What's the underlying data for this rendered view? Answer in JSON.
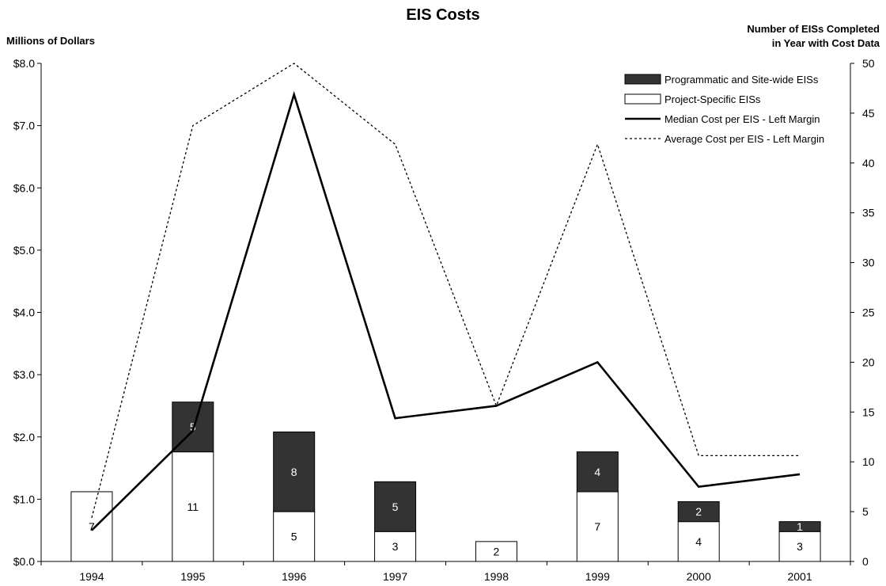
{
  "chart_data": {
    "type": "bar",
    "title": "EIS Costs",
    "left_axis": {
      "label": "Millions of Dollars",
      "ylim": [
        0,
        8
      ],
      "ticks": [
        "$0.0",
        "$1.0",
        "$2.0",
        "$3.0",
        "$4.0",
        "$5.0",
        "$6.0",
        "$7.0",
        "$8.0"
      ]
    },
    "right_axis": {
      "label_lines": [
        "Number of EISs Completed",
        "in Year with Cost Data"
      ],
      "ylim": [
        0,
        50
      ],
      "ticks": [
        "0",
        "5",
        "10",
        "15",
        "20",
        "25",
        "30",
        "35",
        "40",
        "45",
        "50"
      ]
    },
    "categories": [
      "1994",
      "1995",
      "1996",
      "1997",
      "1998",
      "1999",
      "2000",
      "2001"
    ],
    "stacked_bars": [
      {
        "name": "Project-Specific EISs",
        "axis": "right",
        "color": "#ffffff",
        "values": [
          7,
          11,
          5,
          3,
          2,
          7,
          4,
          3
        ],
        "labels": [
          "7",
          "11",
          "5",
          "3",
          "2",
          "7",
          "4",
          "3"
        ]
      },
      {
        "name": "Programmatic and Site-wide EISs",
        "axis": "right",
        "color": "#333333",
        "values": [
          0,
          5,
          8,
          5,
          0,
          4,
          2,
          1
        ],
        "labels": [
          "",
          "5",
          "8",
          "5",
          "",
          "4",
          "2",
          "1"
        ]
      }
    ],
    "lines": [
      {
        "name": "Median Cost per EIS - Left Margin",
        "axis": "left",
        "style": "solid",
        "values": [
          0.5,
          2.1,
          7.5,
          2.3,
          2.5,
          3.2,
          1.2,
          1.4
        ]
      },
      {
        "name": "Average Cost per EIS - Left Margin",
        "axis": "left",
        "style": "dotted",
        "values": [
          0.7,
          7.0,
          8.0,
          6.7,
          2.5,
          6.7,
          1.7,
          1.7
        ]
      }
    ],
    "legend": {
      "position": "top-right",
      "items": [
        {
          "name": "Programmatic and Site-wide EISs",
          "kind": "box",
          "color": "#333333"
        },
        {
          "name": "Project-Specific EISs",
          "kind": "box",
          "color": "#ffffff"
        },
        {
          "name": "Median Cost per EIS - Left Margin",
          "kind": "solid-line"
        },
        {
          "name": "Average Cost per EIS - Left Margin",
          "kind": "dotted-line"
        }
      ]
    },
    "grid": false
  }
}
